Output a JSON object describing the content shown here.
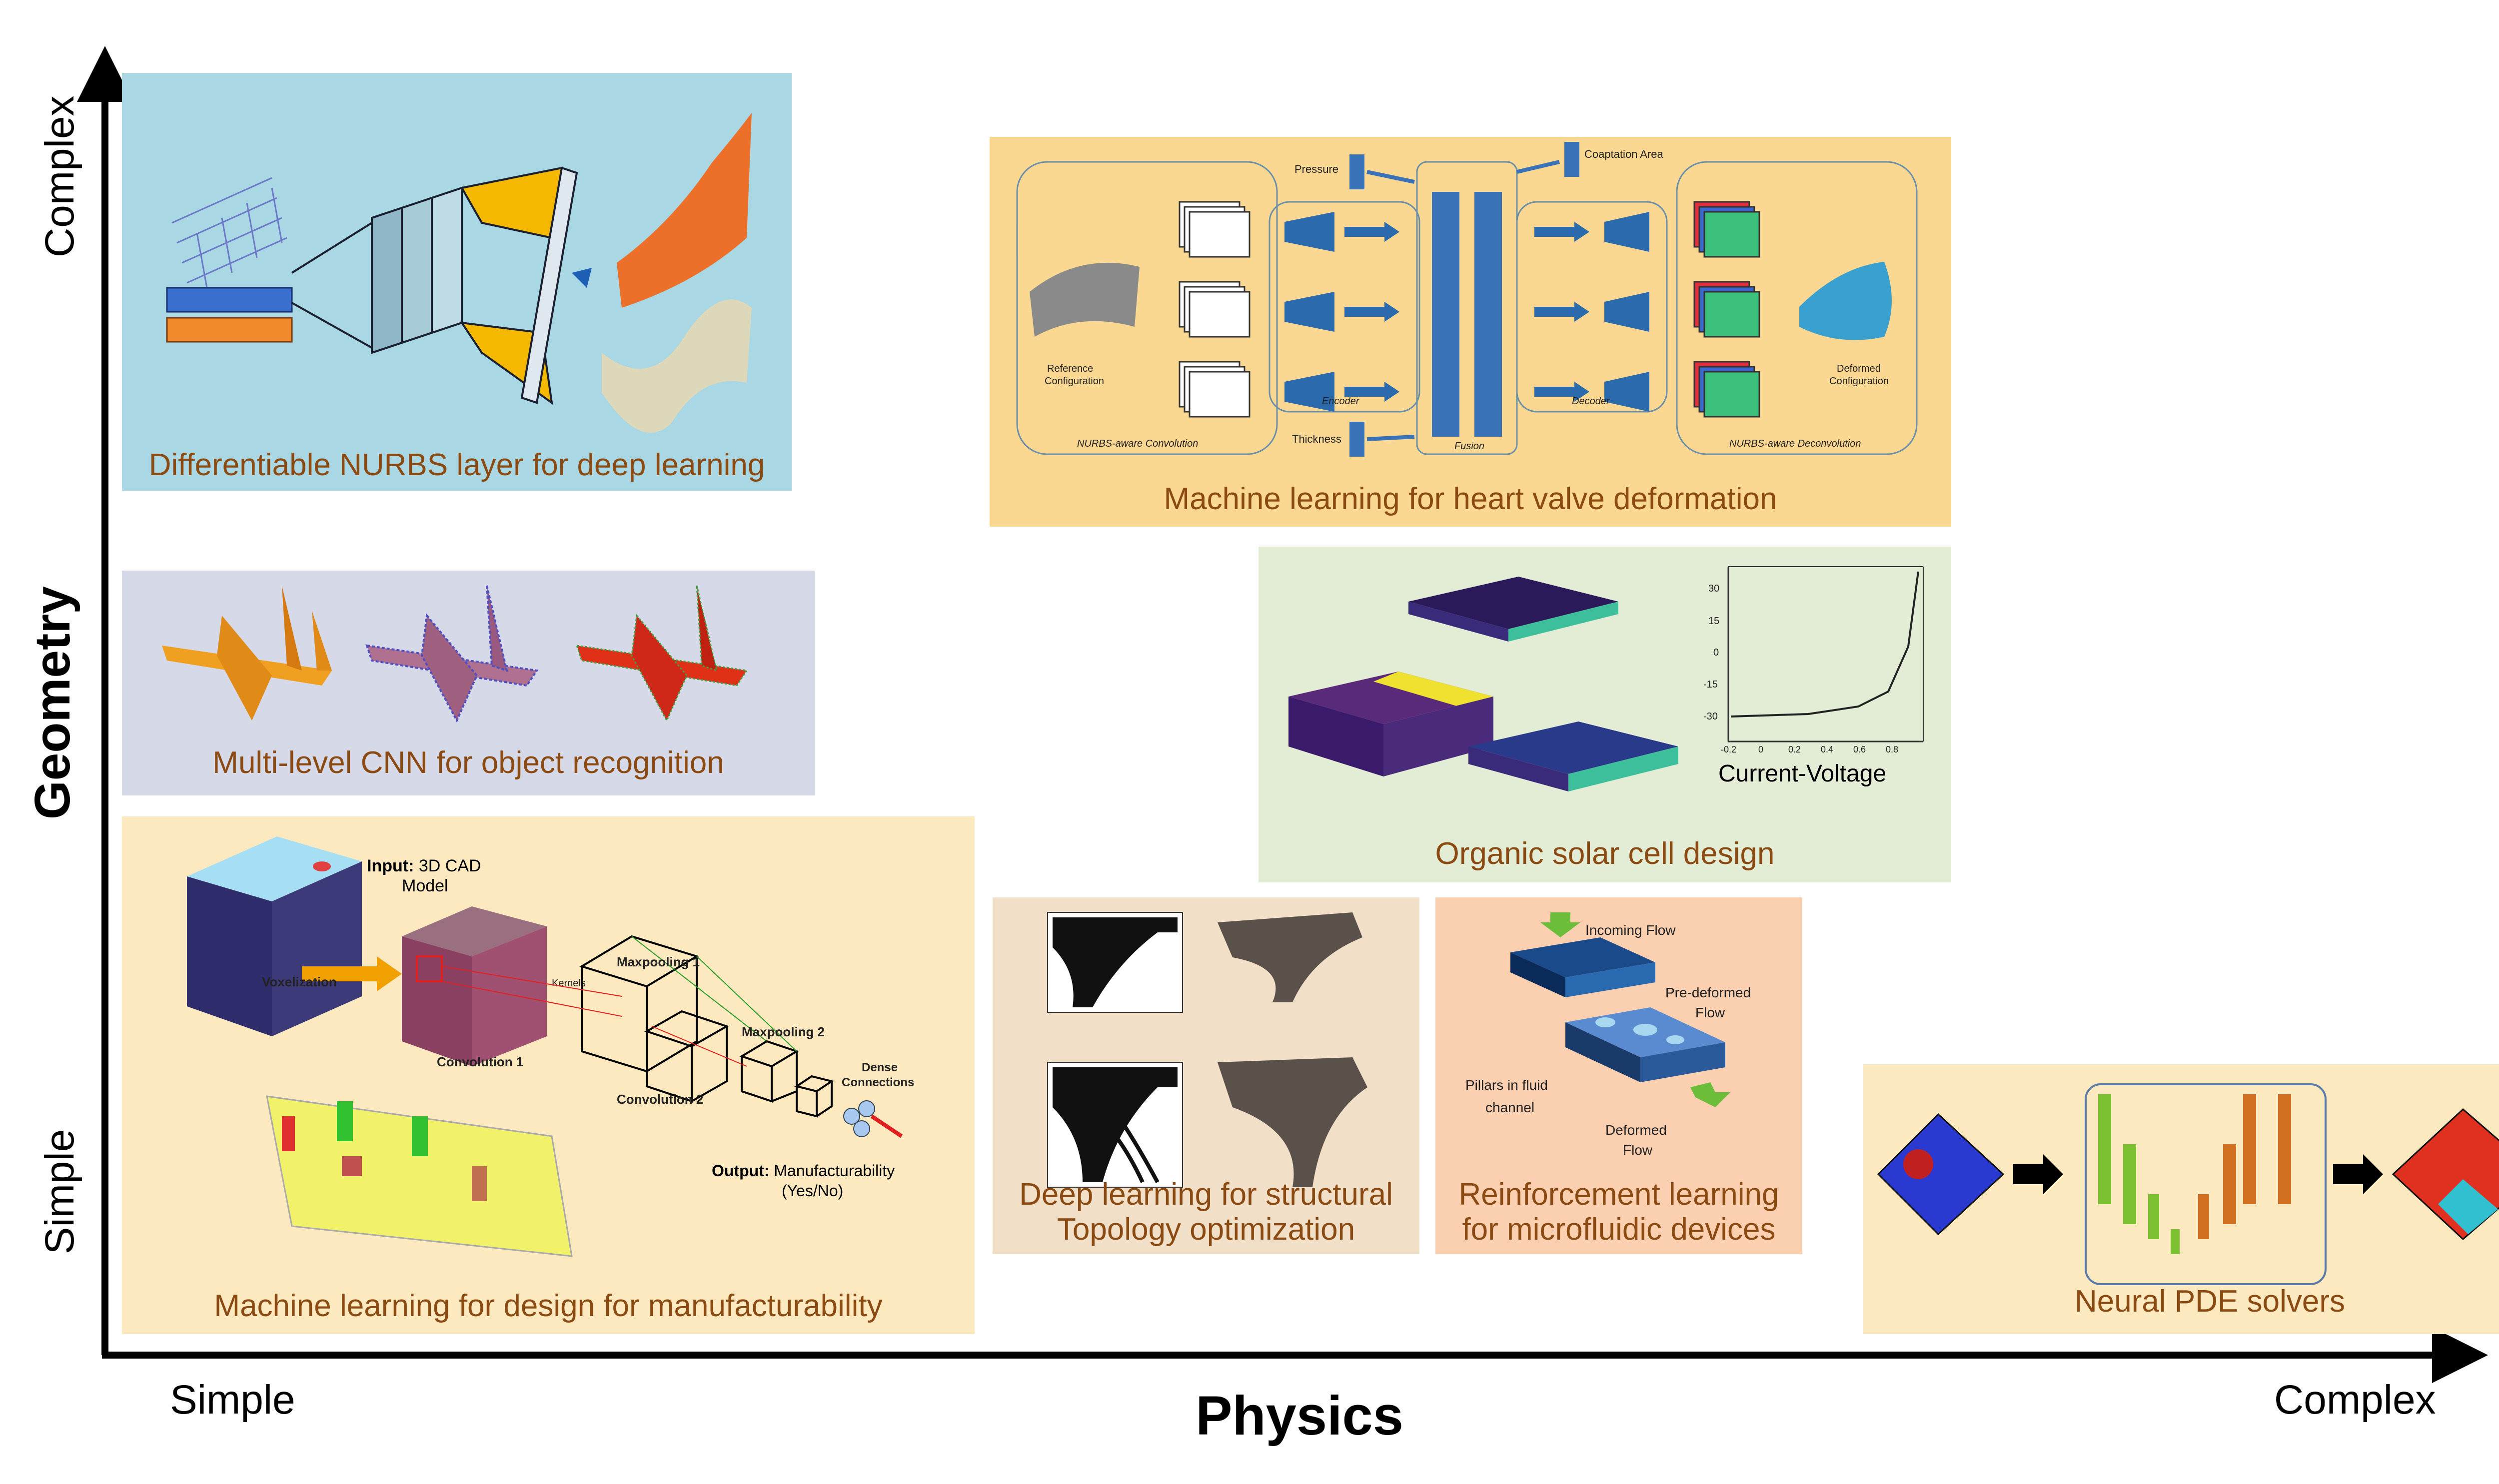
{
  "axes": {
    "x_title": "Physics",
    "y_title": "Geometry",
    "x_low": "Simple",
    "x_high": "Complex",
    "y_low": "Simple",
    "y_high": "Complex"
  },
  "panels": {
    "nurbs": {
      "title": "Differentiable NURBS layer for deep learning",
      "bg": "#a9d7e3"
    },
    "heart": {
      "title": "Machine learning for heart valve deformation",
      "bg": "#fbd891",
      "labels": {
        "pressure": "Pressure",
        "thickness": "Thickness",
        "coaptation": "Coaptation Area",
        "reference1": "Reference",
        "reference2": "Configuration",
        "deformed1": "Deformed",
        "deformed2": "Configuration",
        "encoder": "Encoder",
        "decoder": "Decoder",
        "fusion": "Fusion",
        "conv": "NURBS-aware Convolution",
        "deconv": "NURBS-aware Deconvolution"
      }
    },
    "cnn": {
      "title": "Multi-level CNN for object recognition",
      "bg": "#d6d9e8"
    },
    "solar": {
      "title": "Organic solar cell design",
      "bg": "#e3edd5",
      "plot_caption": "Current-Voltage",
      "yticks": [
        "30",
        "15",
        "0",
        "-15",
        "-30"
      ],
      "xticks": [
        "-0.2",
        "0",
        "0.2",
        "0.4",
        "0.6",
        "0.8"
      ]
    },
    "dfm": {
      "title": "Machine learning for design for manufacturability",
      "bg": "#fde9bf",
      "labels": {
        "input_bold": "Input:",
        "input_rest": " 3D CAD",
        "input_line2": "Model",
        "voxelization": "Voxelization",
        "kernels": "Kernels",
        "conv1": "Convolution 1",
        "conv2": "Convolution 2",
        "maxpool1": "Maxpooling 1",
        "maxpool2": "Maxpooling 2",
        "dense1": "Dense",
        "dense2": "Connections",
        "output_bold": "Output:",
        "output_rest": " Manufacturability",
        "output_line2": "(Yes/No)"
      }
    },
    "topo": {
      "title_line1": "Deep learning for structural",
      "title_line2": "Topology optimization",
      "bg": "#f1dfc8"
    },
    "micro": {
      "title_line1": "Reinforcement learning",
      "title_line2": "for microfluidic devices",
      "bg": "#fbd0b1",
      "labels": {
        "incoming": "Incoming Flow",
        "predeformed1": "Pre-deformed",
        "predeformed2": "Flow",
        "pillars1": "Pillars in fluid",
        "pillars2": "channel",
        "deformed1": "Deformed",
        "deformed2": "Flow"
      }
    },
    "pde": {
      "title": "Neural PDE solvers",
      "bg": "#fde9bf"
    }
  }
}
